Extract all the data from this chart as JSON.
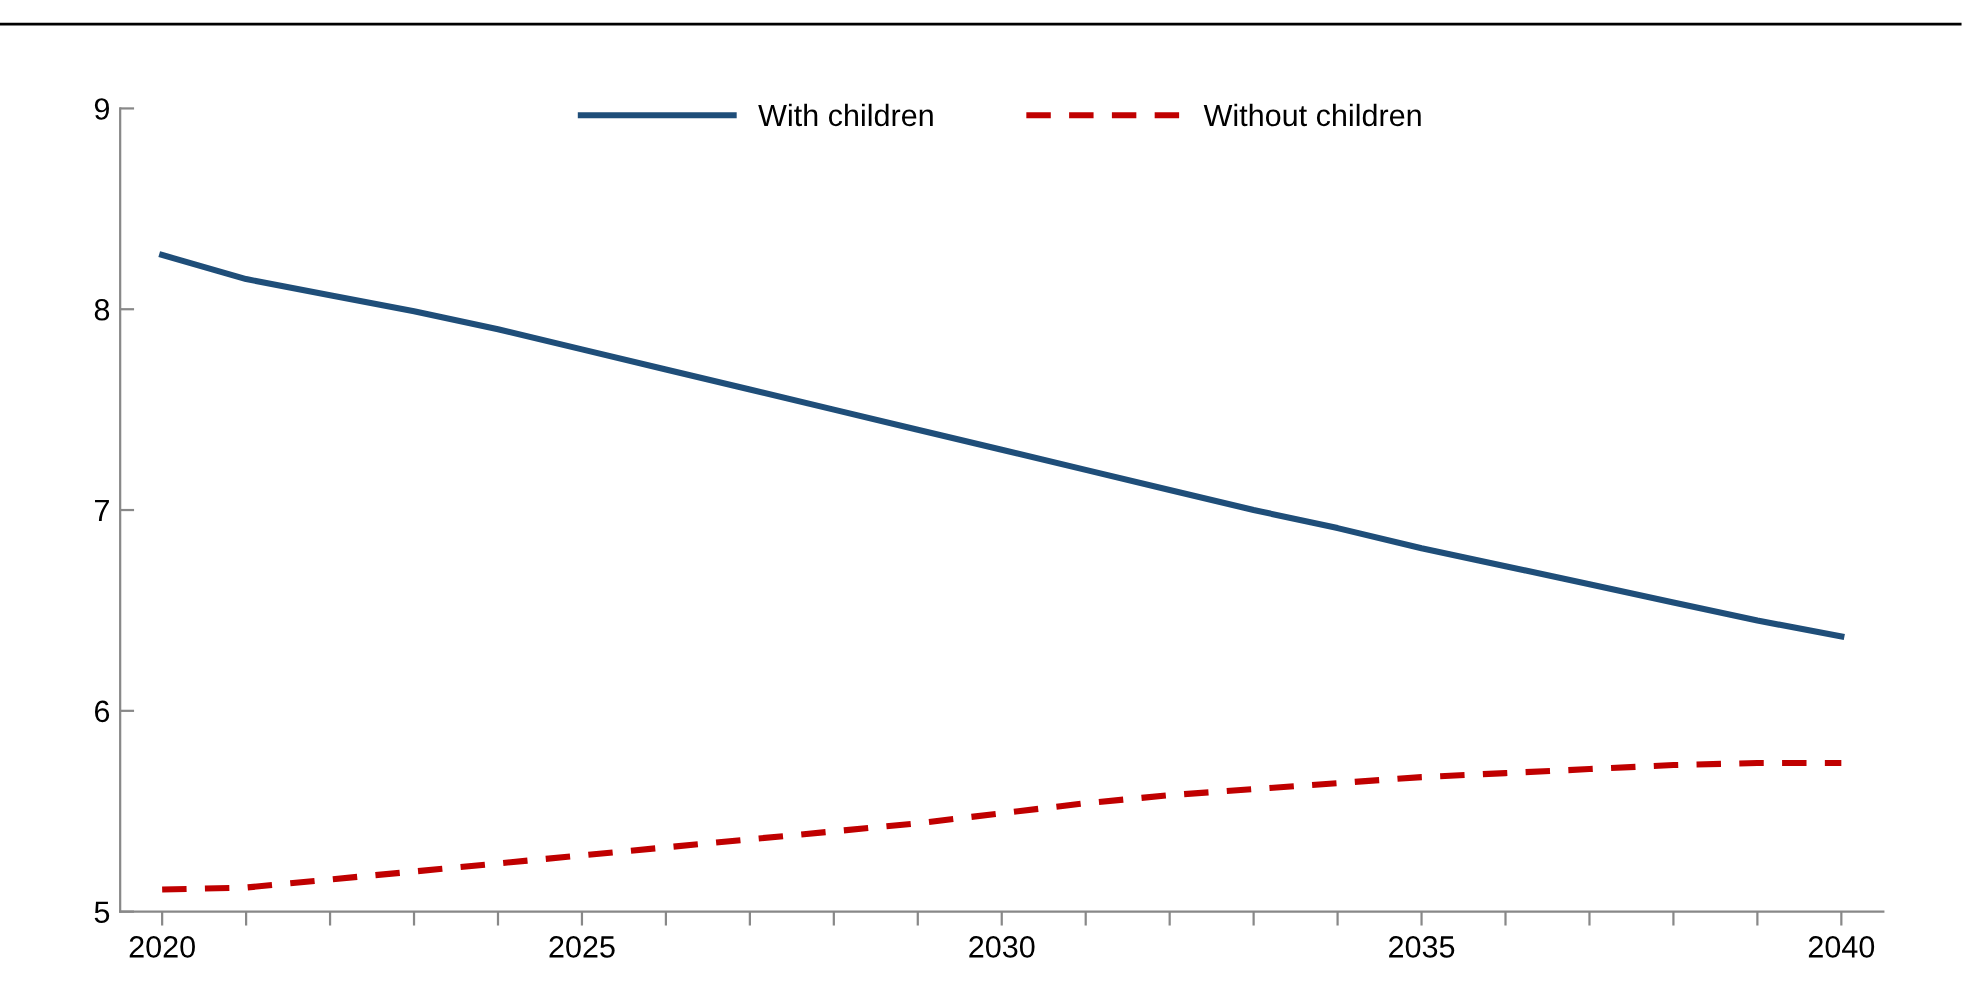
{
  "chart_data": {
    "type": "line",
    "x": [
      2020,
      2021,
      2022,
      2023,
      2024,
      2025,
      2026,
      2027,
      2028,
      2029,
      2030,
      2031,
      2032,
      2033,
      2034,
      2035,
      2036,
      2037,
      2038,
      2039,
      2040
    ],
    "series": [
      {
        "name": "With children",
        "color": "#1f4e79",
        "line_style": "solid",
        "values": [
          8.27,
          8.15,
          8.07,
          7.99,
          7.9,
          7.8,
          7.7,
          7.6,
          7.5,
          7.4,
          7.3,
          7.2,
          7.1,
          7.0,
          6.91,
          6.81,
          6.72,
          6.63,
          6.54,
          6.45,
          6.37
        ]
      },
      {
        "name": "Without children",
        "color": "#c00000",
        "line_style": "dashed",
        "values": [
          5.11,
          5.12,
          5.16,
          5.2,
          5.24,
          5.28,
          5.32,
          5.36,
          5.4,
          5.44,
          5.49,
          5.54,
          5.58,
          5.61,
          5.64,
          5.67,
          5.69,
          5.71,
          5.73,
          5.74,
          5.74
        ]
      }
    ],
    "xlim": [
      2019.5,
      2040.5
    ],
    "xticks": [
      2020,
      {
        "value": 2021,
        "label": null
      },
      {
        "value": 2022,
        "label": null
      },
      {
        "value": 2023,
        "label": null
      },
      {
        "value": 2024,
        "label": null
      },
      2025,
      {
        "value": 2026,
        "label": null
      },
      {
        "value": 2027,
        "label": null
      },
      {
        "value": 2028,
        "label": null
      },
      {
        "value": 2029,
        "label": null
      },
      2030,
      {
        "value": 2031,
        "label": null
      },
      {
        "value": 2032,
        "label": null
      },
      {
        "value": 2033,
        "label": null
      },
      {
        "value": 2034,
        "label": null
      },
      2035,
      {
        "value": 2036,
        "label": null
      },
      {
        "value": 2037,
        "label": null
      },
      {
        "value": 2038,
        "label": null
      },
      {
        "value": 2039,
        "label": null
      },
      2040
    ],
    "ylim": [
      5,
      9
    ],
    "yticks": [
      5,
      6,
      7,
      8,
      9
    ],
    "grid": false,
    "legend": "top",
    "marker": "none"
  }
}
